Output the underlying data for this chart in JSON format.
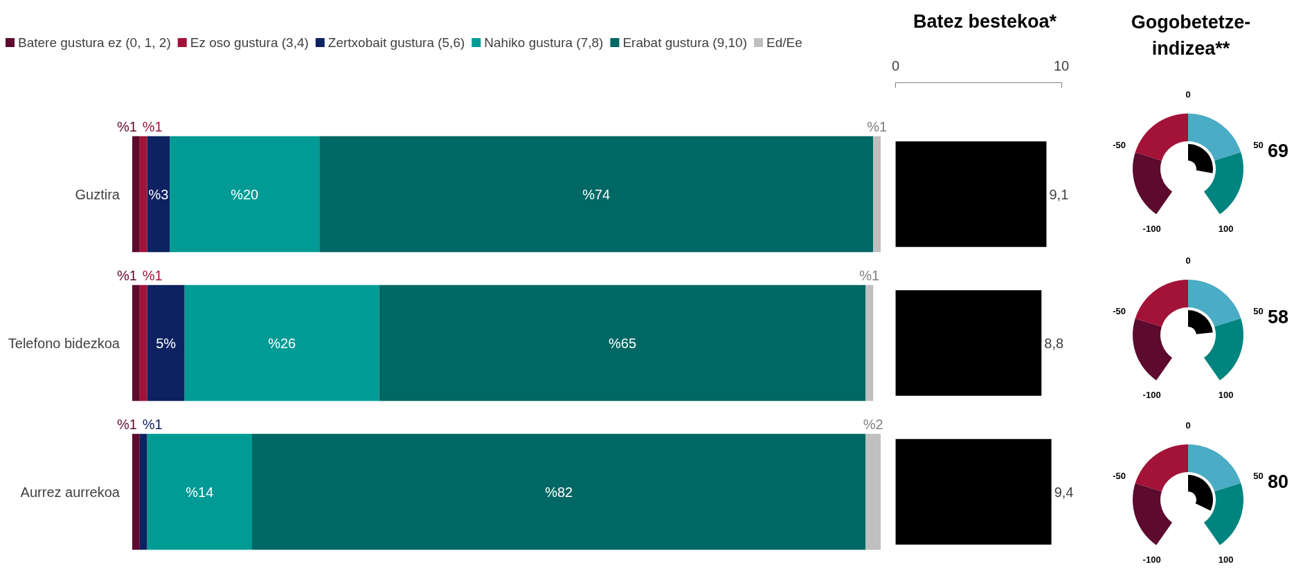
{
  "chart_data": [
    {
      "type": "bar",
      "orientation": "horizontal",
      "stacked": true,
      "categories": [
        "Guztira",
        "Telefono bidezkoa",
        "Aurrez aurrekoa"
      ],
      "xlim": [
        0,
        100
      ],
      "tick_labels": "y",
      "legend": "top left",
      "grid": false,
      "series": [
        {
          "name": "Batere gustura ez (0, 1, 2)",
          "color": "#5c0a2e",
          "values": [
            1,
            1,
            1
          ],
          "value_labels": [
            "%1",
            "%1",
            "%1"
          ]
        },
        {
          "name": "Ez oso gustura (3,4)",
          "color": "#a31237",
          "values": [
            1,
            1,
            0
          ],
          "value_labels": [
            "%1",
            "%1",
            null
          ]
        },
        {
          "name": "Zertxobait gustura (5,6)",
          "color": "#0d2260",
          "values": [
            3,
            5,
            1
          ],
          "value_labels": [
            "%3",
            "5%",
            "%1"
          ]
        },
        {
          "name": "Nahiko gustura (7,8)",
          "color": "#009b95",
          "values": [
            20,
            26,
            14
          ],
          "value_labels": [
            "%20",
            "%26",
            "%14"
          ]
        },
        {
          "name": "Erabat gustura (9,10)",
          "color": "#006864",
          "values": [
            74,
            65,
            82
          ],
          "value_labels": [
            "%74",
            "%65",
            "%82"
          ]
        },
        {
          "name": "Ed/Ee",
          "color": "#bfbfbf",
          "values": [
            1,
            1,
            2
          ],
          "value_labels": [
            "%1",
            "%1",
            "%2"
          ]
        }
      ]
    },
    {
      "type": "bar",
      "orientation": "horizontal",
      "title": "Batez bestekoa*",
      "categories": [
        null,
        null,
        null
      ],
      "xlim": [
        0,
        10
      ],
      "xticks": [
        0,
        10
      ],
      "tick_labels": "x",
      "grid": false,
      "series": [
        {
          "color": "#000000",
          "values": [
            9.1,
            8.8,
            9.4
          ],
          "value_labels": [
            "9,1",
            "8,8",
            "9,4"
          ]
        }
      ]
    },
    {
      "type": "other",
      "title": "Gogobetetze-indizea**",
      "categories": [
        null,
        null,
        null
      ],
      "annotations": [
        "-100",
        "-50",
        "0",
        "50",
        "100"
      ],
      "colors": [
        "#5c0a2e",
        "#a31237",
        "#4bacc6",
        "#00847f"
      ],
      "series": [
        {
          "color": "#000000",
          "values": [
            69,
            58,
            80
          ],
          "data_labels": true
        }
      ]
    }
  ]
}
